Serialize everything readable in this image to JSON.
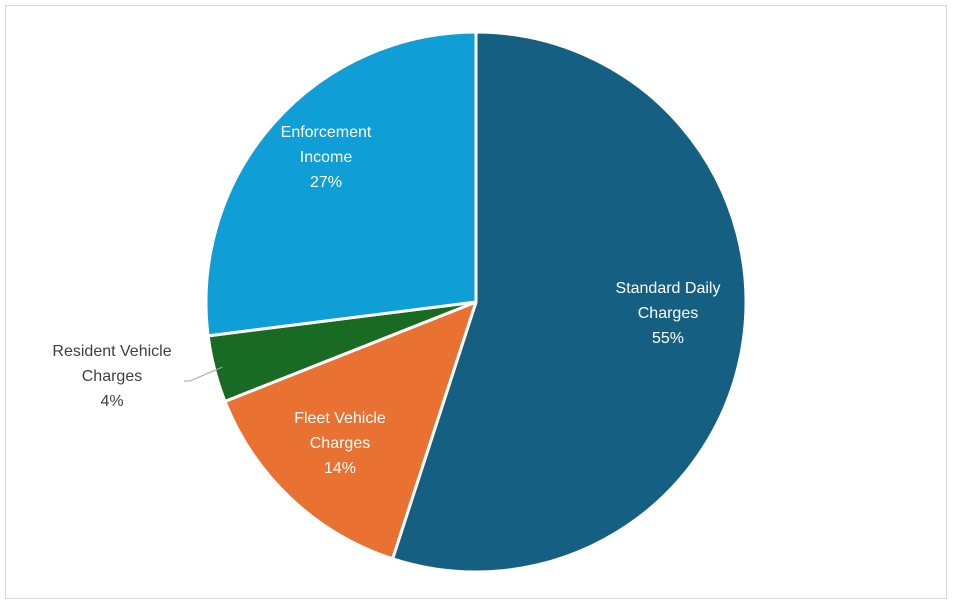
{
  "chart_data": {
    "type": "pie",
    "title": "",
    "start_angle_deg": 0,
    "direction": "clockwise",
    "slices": [
      {
        "label_lines": [
          "Standard Daily",
          "Charges"
        ],
        "value": 55,
        "pct_label": "55%",
        "color": "#156082",
        "label_color": "#ffffff",
        "label_position": "inside"
      },
      {
        "label_lines": [
          "Fleet Vehicle",
          "Charges"
        ],
        "value": 14,
        "pct_label": "14%",
        "color": "#E97132",
        "label_color": "#ffffff",
        "label_position": "inside"
      },
      {
        "label_lines": [
          "Resident Vehicle",
          "Charges"
        ],
        "value": 4,
        "pct_label": "4%",
        "color": "#196B24",
        "label_color": "#404040",
        "label_position": "outside"
      },
      {
        "label_lines": [
          "Enforcement",
          "Income"
        ],
        "value": 27,
        "pct_label": "27%",
        "color": "#0F9ED5",
        "label_color": "#ffffff",
        "label_position": "inside"
      }
    ]
  }
}
